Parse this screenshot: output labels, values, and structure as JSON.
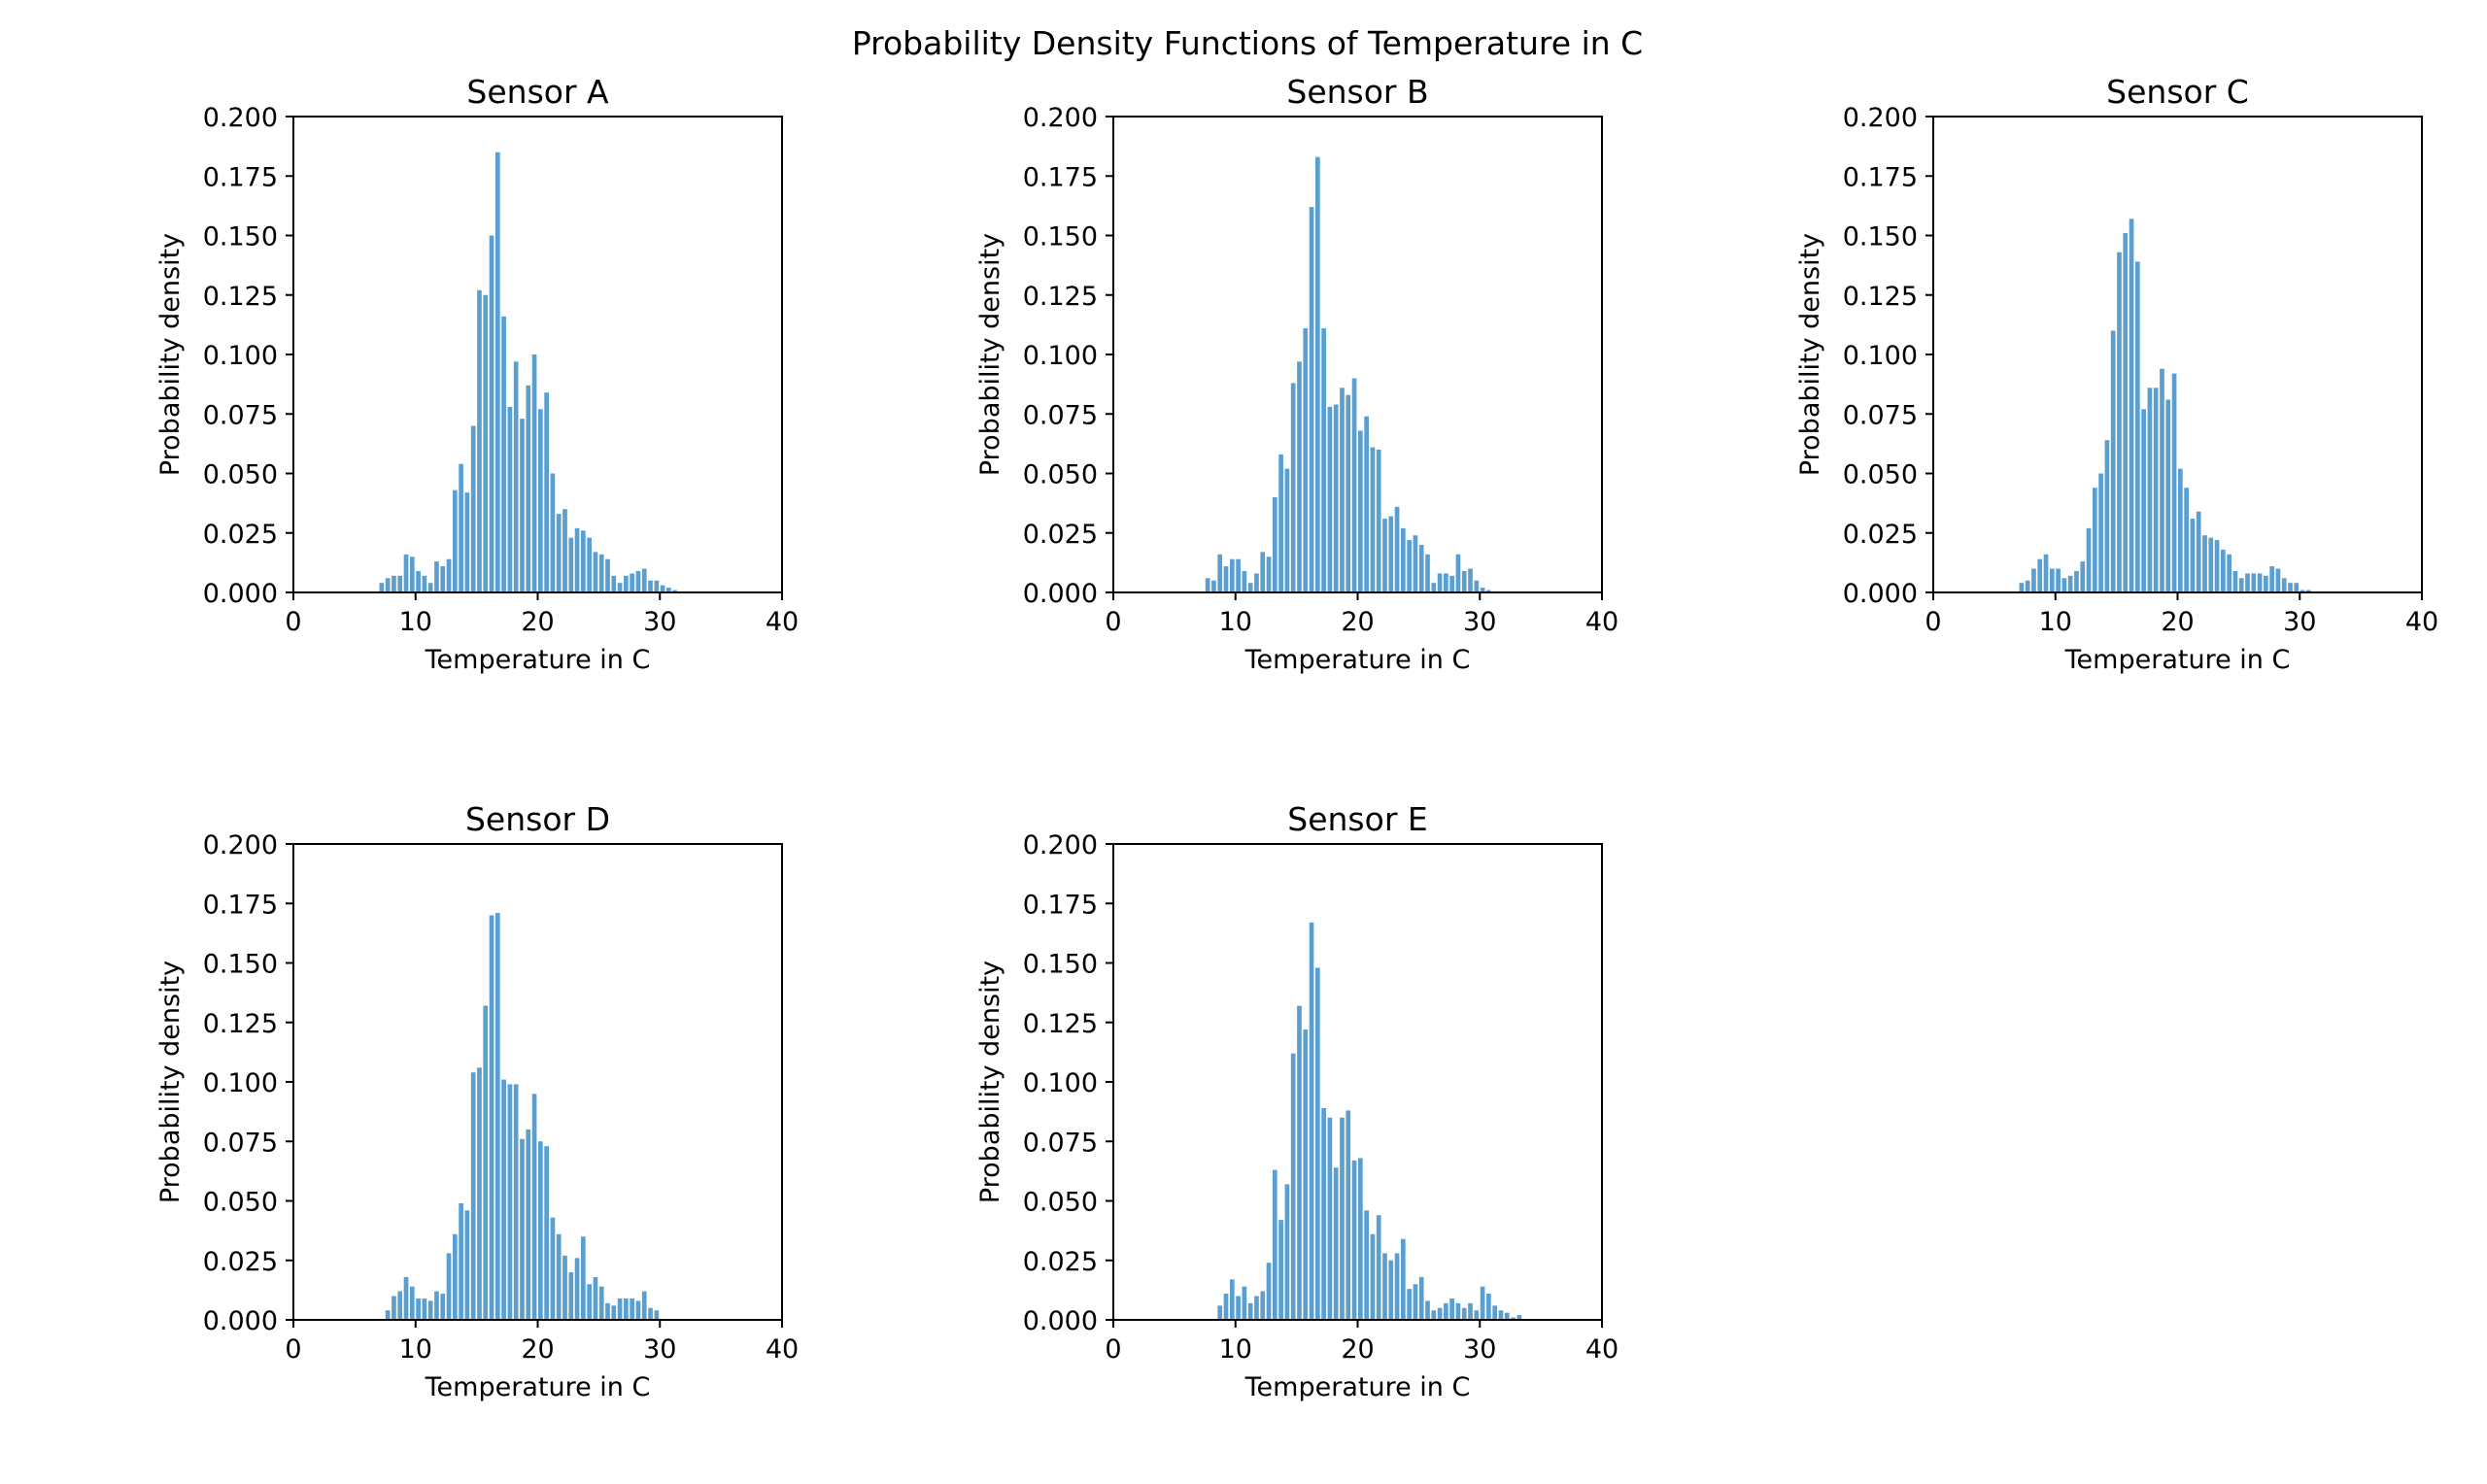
{
  "figure_title": "Probability Density Functions of Temperature in C",
  "colors": {
    "bar": "#5a9fd0",
    "axis": "#000000",
    "background": "#ffffff"
  },
  "chart_data": [
    {
      "type": "bar",
      "title": "Sensor A",
      "xlabel": "Temperature in C",
      "ylabel": "Probability density",
      "xlim": [
        0,
        40
      ],
      "ylim": [
        0,
        0.2
      ],
      "xticks": [
        "0",
        "10",
        "20",
        "30",
        "40"
      ],
      "yticks": [
        "0.000",
        "0.025",
        "0.050",
        "0.075",
        "0.100",
        "0.125",
        "0.150",
        "0.175",
        "0.200"
      ],
      "grid": false,
      "bin_start": 7.0,
      "bin_width": 0.5,
      "values": [
        0.004,
        0.006,
        0.007,
        0.007,
        0.016,
        0.015,
        0.009,
        0.007,
        0.004,
        0.013,
        0.011,
        0.014,
        0.043,
        0.054,
        0.042,
        0.07,
        0.127,
        0.125,
        0.15,
        0.185,
        0.116,
        0.078,
        0.097,
        0.073,
        0.087,
        0.1,
        0.077,
        0.084,
        0.05,
        0.033,
        0.035,
        0.023,
        0.027,
        0.026,
        0.023,
        0.017,
        0.016,
        0.014,
        0.007,
        0.004,
        0.007,
        0.008,
        0.009,
        0.01,
        0.005,
        0.005,
        0.003,
        0.002,
        0.001
      ]
    },
    {
      "type": "bar",
      "title": "Sensor B",
      "xlabel": "Temperature in C",
      "ylabel": "Probability density",
      "xlim": [
        0,
        40
      ],
      "ylim": [
        0,
        0.2
      ],
      "xticks": [
        "0",
        "10",
        "20",
        "30",
        "40"
      ],
      "yticks": [
        "0.000",
        "0.025",
        "0.050",
        "0.075",
        "0.100",
        "0.125",
        "0.150",
        "0.175",
        "0.200"
      ],
      "grid": false,
      "bin_start": 7.5,
      "bin_width": 0.5,
      "values": [
        0.006,
        0.005,
        0.016,
        0.011,
        0.014,
        0.014,
        0.009,
        0.004,
        0.008,
        0.017,
        0.015,
        0.04,
        0.058,
        0.052,
        0.088,
        0.097,
        0.111,
        0.162,
        0.183,
        0.111,
        0.078,
        0.079,
        0.086,
        0.083,
        0.09,
        0.068,
        0.074,
        0.061,
        0.06,
        0.031,
        0.032,
        0.036,
        0.027,
        0.022,
        0.024,
        0.02,
        0.016,
        0.004,
        0.008,
        0.008,
        0.007,
        0.016,
        0.009,
        0.01,
        0.005,
        0.002,
        0.001
      ]
    },
    {
      "type": "bar",
      "title": "Sensor C",
      "xlabel": "Temperature in C",
      "ylabel": "Probability density",
      "xlim": [
        0,
        40
      ],
      "ylim": [
        0,
        0.2
      ],
      "xticks": [
        "0",
        "10",
        "20",
        "30",
        "40"
      ],
      "yticks": [
        "0.000",
        "0.025",
        "0.050",
        "0.075",
        "0.100",
        "0.125",
        "0.150",
        "0.175",
        "0.200"
      ],
      "grid": false,
      "bin_start": 7.0,
      "bin_width": 0.5,
      "values": [
        0.004,
        0.005,
        0.01,
        0.014,
        0.016,
        0.01,
        0.01,
        0.006,
        0.007,
        0.009,
        0.013,
        0.027,
        0.044,
        0.05,
        0.064,
        0.11,
        0.143,
        0.151,
        0.157,
        0.139,
        0.077,
        0.086,
        0.086,
        0.094,
        0.081,
        0.092,
        0.052,
        0.044,
        0.031,
        0.034,
        0.024,
        0.023,
        0.022,
        0.018,
        0.016,
        0.009,
        0.006,
        0.008,
        0.008,
        0.008,
        0.007,
        0.011,
        0.01,
        0.006,
        0.004,
        0.004,
        0.001,
        0.001
      ]
    },
    {
      "type": "bar",
      "title": "Sensor D",
      "xlabel": "Temperature in C",
      "ylabel": "Probability density",
      "xlim": [
        0,
        40
      ],
      "ylim": [
        0,
        0.2
      ],
      "xticks": [
        "0",
        "10",
        "20",
        "30",
        "40"
      ],
      "yticks": [
        "0.000",
        "0.025",
        "0.050",
        "0.075",
        "0.100",
        "0.125",
        "0.150",
        "0.175",
        "0.200"
      ],
      "grid": false,
      "bin_start": 7.5,
      "bin_width": 0.5,
      "values": [
        0.004,
        0.01,
        0.012,
        0.018,
        0.014,
        0.009,
        0.009,
        0.008,
        0.012,
        0.011,
        0.028,
        0.036,
        0.049,
        0.046,
        0.104,
        0.106,
        0.132,
        0.17,
        0.171,
        0.101,
        0.099,
        0.099,
        0.076,
        0.08,
        0.095,
        0.075,
        0.073,
        0.043,
        0.036,
        0.027,
        0.02,
        0.026,
        0.035,
        0.015,
        0.018,
        0.014,
        0.007,
        0.006,
        0.009,
        0.009,
        0.009,
        0.008,
        0.012,
        0.005,
        0.004
      ]
    },
    {
      "type": "bar",
      "title": "Sensor E",
      "xlabel": "Temperature in C",
      "ylabel": "Probability density",
      "xlim": [
        0,
        40
      ],
      "ylim": [
        0,
        0.2
      ],
      "xticks": [
        "0",
        "10",
        "20",
        "30",
        "40"
      ],
      "yticks": [
        "0.000",
        "0.025",
        "0.050",
        "0.075",
        "0.100",
        "0.125",
        "0.150",
        "0.175",
        "0.200"
      ],
      "grid": false,
      "bin_start": 8.5,
      "bin_width": 0.5,
      "values": [
        0.006,
        0.011,
        0.017,
        0.01,
        0.014,
        0.007,
        0.01,
        0.012,
        0.024,
        0.063,
        0.042,
        0.057,
        0.112,
        0.132,
        0.122,
        0.167,
        0.148,
        0.089,
        0.085,
        0.064,
        0.085,
        0.088,
        0.067,
        0.068,
        0.046,
        0.036,
        0.044,
        0.028,
        0.025,
        0.028,
        0.034,
        0.013,
        0.015,
        0.018,
        0.008,
        0.004,
        0.005,
        0.007,
        0.009,
        0.007,
        0.005,
        0.007,
        0.004,
        0.014,
        0.011,
        0.006,
        0.004,
        0.003,
        0.001,
        0.002
      ]
    }
  ]
}
